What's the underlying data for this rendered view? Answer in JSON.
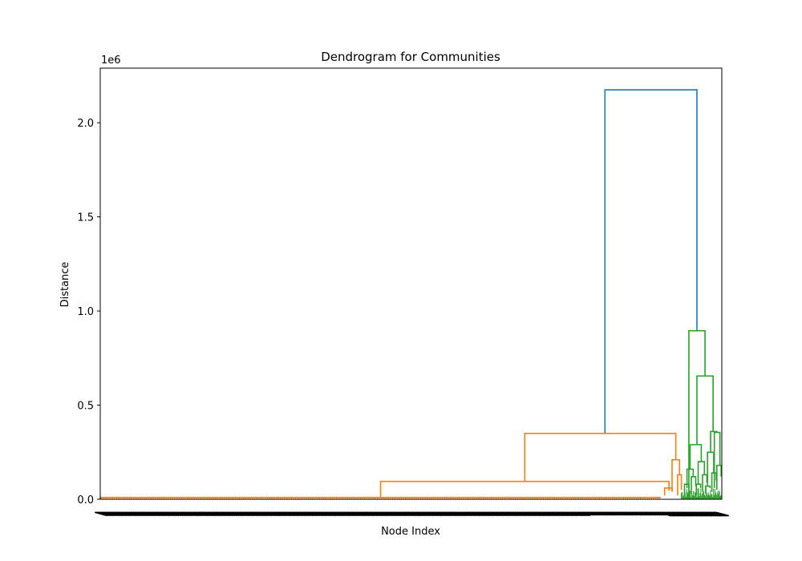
{
  "chart_data": {
    "type": "dendrogram",
    "title": "Dendrogram for Communities",
    "xlabel": "Node Index",
    "ylabel": "Distance",
    "y_offset_label": "1e6",
    "y_scale": 1000000,
    "ylim": [
      0,
      2290000
    ],
    "xlim": [
      0,
      1000
    ],
    "y_ticks": [
      {
        "value": 0,
        "label": "0.0"
      },
      {
        "value": 500000,
        "label": "0.5"
      },
      {
        "value": 1000000,
        "label": "1.0"
      },
      {
        "value": 1500000,
        "label": "1.5"
      },
      {
        "value": 2000000,
        "label": "2.0"
      }
    ],
    "colors": {
      "root": "#1f77b4",
      "cluster1": "#ff7f0e",
      "cluster2": "#2ca02c"
    },
    "links": [
      {
        "color": "root",
        "x1": 812,
        "x2": 960,
        "y_left": 350000,
        "y_right": 895000,
        "y_top": 2175000
      },
      {
        "color": "cluster1",
        "x1": 683,
        "x2": 926,
        "y_left": 95000,
        "y_right": 210000,
        "y_top": 350000
      },
      {
        "color": "cluster1",
        "x1": 451,
        "x2": 915,
        "y_left": 10000,
        "y_right": 45000,
        "y_top": 95000
      },
      {
        "color": "cluster1",
        "x1": 0,
        "x2": 902,
        "y_left": 0,
        "y_right": 10000,
        "y_top": 10000
      },
      {
        "color": "cluster1",
        "x1": 920,
        "x2": 932,
        "y_left": 40000,
        "y_right": 130000,
        "y_top": 210000
      },
      {
        "color": "cluster1",
        "x1": 908,
        "x2": 920,
        "y_left": 20000,
        "y_right": 45000,
        "y_top": 60000
      },
      {
        "color": "cluster1",
        "x1": 929,
        "x2": 935,
        "y_left": 20000,
        "y_right": 50000,
        "y_top": 130000
      },
      {
        "color": "cluster2",
        "x1": 947,
        "x2": 973,
        "y_left": 0,
        "y_right": 655000,
        "y_top": 895000
      },
      {
        "color": "cluster2",
        "x1": 960,
        "x2": 986,
        "y_left": 290000,
        "y_right": 360000,
        "y_top": 655000
      },
      {
        "color": "cluster2",
        "x1": 949,
        "x2": 967,
        "y_left": 160000,
        "y_right": 200000,
        "y_top": 290000
      },
      {
        "color": "cluster2",
        "x1": 982,
        "x2": 992,
        "y_left": 250000,
        "y_right": 355000,
        "y_top": 360000
      },
      {
        "color": "cluster2",
        "x1": 944,
        "x2": 954,
        "y_left": 60000,
        "y_right": 120000,
        "y_top": 160000
      },
      {
        "color": "cluster2",
        "x1": 962,
        "x2": 972,
        "y_left": 80000,
        "y_right": 130000,
        "y_top": 200000
      },
      {
        "color": "cluster2",
        "x1": 977,
        "x2": 987,
        "y_left": 70000,
        "y_right": 140000,
        "y_top": 250000
      },
      {
        "color": "cluster2",
        "x1": 988,
        "x2": 997,
        "y_left": 60000,
        "y_right": 180000,
        "y_top": 355000
      },
      {
        "color": "cluster2",
        "x1": 940,
        "x2": 947,
        "y_left": 20000,
        "y_right": 60000,
        "y_top": 80000
      },
      {
        "color": "cluster2",
        "x1": 951,
        "x2": 958,
        "y_left": 30000,
        "y_right": 70000,
        "y_top": 120000
      },
      {
        "color": "cluster2",
        "x1": 959,
        "x2": 966,
        "y_left": 20000,
        "y_right": 60000,
        "y_top": 80000
      },
      {
        "color": "cluster2",
        "x1": 969,
        "x2": 976,
        "y_left": 40000,
        "y_right": 90000,
        "y_top": 130000
      },
      {
        "color": "cluster2",
        "x1": 974,
        "x2": 981,
        "y_left": 30000,
        "y_right": 60000,
        "y_top": 70000
      },
      {
        "color": "cluster2",
        "x1": 984,
        "x2": 991,
        "y_left": 40000,
        "y_right": 100000,
        "y_top": 140000
      },
      {
        "color": "cluster2",
        "x1": 992,
        "x2": 999,
        "y_left": 50000,
        "y_right": 120000,
        "y_top": 180000
      }
    ]
  }
}
